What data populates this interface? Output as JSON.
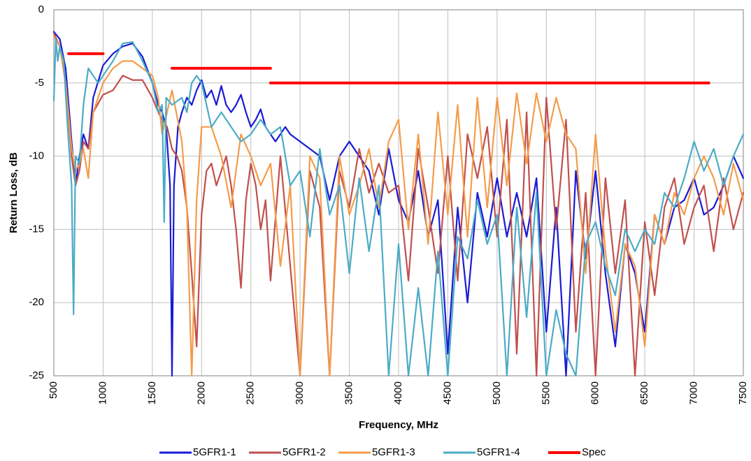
{
  "chart_data": {
    "type": "line",
    "title": "",
    "xlabel": "Frequency, MHz",
    "ylabel": "Return Loss, dB",
    "xlim": [
      500,
      7500
    ],
    "ylim": [
      -25,
      0
    ],
    "x_ticks": [
      500,
      1000,
      1500,
      2000,
      2500,
      3000,
      3500,
      4000,
      4500,
      5000,
      5500,
      6000,
      6500,
      7000,
      7500
    ],
    "y_ticks": [
      0,
      -5,
      -10,
      -15,
      -20,
      -25
    ],
    "grid": true,
    "legend_position": "bottom",
    "series": [
      {
        "name": "5GFR1-1",
        "color": "#1a1ad6",
        "x": [
          500,
          560,
          620,
          680,
          720,
          760,
          800,
          850,
          900,
          1000,
          1100,
          1200,
          1300,
          1400,
          1500,
          1560,
          1600,
          1640,
          1680,
          1700,
          1720,
          1760,
          1800,
          1850,
          1900,
          1950,
          2000,
          2050,
          2100,
          2150,
          2200,
          2250,
          2300,
          2350,
          2400,
          2450,
          2500,
          2550,
          2600,
          2650,
          2700,
          2750,
          2800,
          2850,
          2900,
          3000,
          3100,
          3200,
          3300,
          3400,
          3500,
          3600,
          3700,
          3800,
          3900,
          4000,
          4100,
          4200,
          4300,
          4400,
          4500,
          4600,
          4700,
          4800,
          4900,
          5000,
          5100,
          5200,
          5300,
          5400,
          5500,
          5600,
          5700,
          5800,
          5900,
          6000,
          6100,
          6200,
          6300,
          6400,
          6500,
          6600,
          6700,
          6800,
          6900,
          7000,
          7100,
          7200,
          7300,
          7400,
          7500
        ],
        "values": [
          -1.5,
          -2,
          -4,
          -9,
          -12,
          -10,
          -8.5,
          -9.5,
          -6,
          -3.8,
          -3,
          -2.5,
          -2.3,
          -3.2,
          -5,
          -6.5,
          -7,
          -8,
          -12,
          -25,
          -12,
          -8,
          -7,
          -6,
          -6.5,
          -5.5,
          -4.8,
          -6,
          -5.5,
          -6.5,
          -5.2,
          -6.5,
          -7,
          -6.5,
          -5.8,
          -7,
          -8,
          -7.5,
          -6.8,
          -8,
          -8.5,
          -9,
          -8.5,
          -8,
          -8.5,
          -9,
          -9.5,
          -10,
          -13,
          -10,
          -9,
          -10,
          -11,
          -14,
          -9.5,
          -13,
          -14.5,
          -11,
          -15.5,
          -13,
          -23.5,
          -13.5,
          -20,
          -12.5,
          -15.5,
          -11.5,
          -15.5,
          -12.5,
          -15.5,
          -11.5,
          -22,
          -13.5,
          -25,
          -11,
          -17,
          -11,
          -18,
          -23,
          -16,
          -18,
          -22,
          -14,
          -16,
          -13.5,
          -13,
          -11.5,
          -14,
          -13.5,
          -12,
          -10,
          -11.5
        ]
      },
      {
        "name": "5GFR1-2",
        "color": "#c0504d",
        "x": [
          500,
          560,
          620,
          680,
          720,
          760,
          800,
          850,
          900,
          1000,
          1100,
          1200,
          1300,
          1400,
          1500,
          1560,
          1600,
          1650,
          1700,
          1750,
          1800,
          1850,
          1900,
          1950,
          2000,
          2050,
          2100,
          2150,
          2200,
          2250,
          2300,
          2350,
          2400,
          2450,
          2500,
          2550,
          2600,
          2650,
          2700,
          2800,
          2900,
          3000,
          3100,
          3200,
          3300,
          3400,
          3500,
          3600,
          3700,
          3800,
          3900,
          4000,
          4100,
          4200,
          4300,
          4400,
          4500,
          4600,
          4700,
          4800,
          4900,
          5000,
          5100,
          5200,
          5300,
          5400,
          5500,
          5600,
          5700,
          5800,
          5900,
          6000,
          6100,
          6200,
          6300,
          6400,
          6500,
          6600,
          6700,
          6800,
          6900,
          7000,
          7100,
          7200,
          7300,
          7400,
          7500
        ],
        "values": [
          -1.6,
          -2.5,
          -5,
          -10,
          -12,
          -11,
          -9,
          -9.5,
          -7,
          -5.8,
          -5.5,
          -4.5,
          -4.8,
          -4.8,
          -6,
          -7,
          -7.5,
          -8,
          -9.5,
          -10,
          -11,
          -13.5,
          -18,
          -23,
          -14,
          -11,
          -10.5,
          -12,
          -11,
          -10,
          -12,
          -15,
          -19,
          -13,
          -10.5,
          -12,
          -15,
          -13,
          -18.5,
          -10,
          -17.5,
          -25,
          -11,
          -13.5,
          -25,
          -11,
          -13.5,
          -9.5,
          -12.5,
          -10.5,
          -12.5,
          -12,
          -18.5,
          -9.5,
          -13.5,
          -18,
          -10,
          -18.5,
          -8.5,
          -11.5,
          -8,
          -15.5,
          -7.5,
          -23.5,
          -7,
          -25,
          -6,
          -15,
          -7.5,
          -22,
          -12.5,
          -25,
          -11.5,
          -18,
          -13,
          -25,
          -14.5,
          -19.5,
          -13.5,
          -11.5,
          -16,
          -13.5,
          -12,
          -16.5,
          -11.5,
          -15,
          -12.5
        ]
      },
      {
        "name": "5GFR1-3",
        "color": "#f59c4a",
        "x": [
          500,
          560,
          620,
          680,
          720,
          760,
          800,
          850,
          900,
          1000,
          1100,
          1200,
          1300,
          1400,
          1500,
          1560,
          1600,
          1700,
          1800,
          1850,
          1900,
          1950,
          2000,
          2100,
          2200,
          2300,
          2400,
          2500,
          2600,
          2700,
          2800,
          2900,
          3000,
          3100,
          3200,
          3300,
          3400,
          3500,
          3600,
          3700,
          3800,
          3900,
          4000,
          4100,
          4200,
          4300,
          4400,
          4500,
          4600,
          4700,
          4800,
          4900,
          5000,
          5100,
          5200,
          5300,
          5400,
          5500,
          5600,
          5700,
          5800,
          5900,
          6000,
          6100,
          6200,
          6300,
          6400,
          6500,
          6600,
          6700,
          6800,
          6900,
          7000,
          7100,
          7200,
          7300,
          7400,
          7500
        ],
        "values": [
          -1.8,
          -2.5,
          -5,
          -9.5,
          -11,
          -10.5,
          -9.5,
          -11.5,
          -7,
          -5,
          -4,
          -3.5,
          -3.5,
          -4,
          -4.5,
          -6,
          -8.5,
          -5.5,
          -9,
          -13.5,
          -25,
          -13,
          -8,
          -8,
          -10,
          -13.5,
          -8.5,
          -10,
          -12,
          -10.5,
          -17.5,
          -12,
          -25,
          -10,
          -11.5,
          -25,
          -10,
          -14,
          -12,
          -9.5,
          -13.5,
          -9,
          -7.5,
          -15,
          -8.5,
          -16,
          -7,
          -14,
          -6.5,
          -15.5,
          -6,
          -13.5,
          -6,
          -12,
          -5.7,
          -10.5,
          -5.7,
          -9,
          -6,
          -8.5,
          -9.5,
          -18,
          -8.5,
          -16.5,
          -22,
          -16,
          -17.5,
          -23,
          -14,
          -16,
          -12.5,
          -14,
          -11.5,
          -10,
          -11.5,
          -14,
          -10.5,
          -13
        ]
      },
      {
        "name": "5GFR1-4",
        "color": "#4bacc6",
        "x": [
          500,
          520,
          540,
          560,
          600,
          640,
          680,
          700,
          720,
          760,
          800,
          850,
          900,
          950,
          1000,
          1100,
          1200,
          1300,
          1400,
          1500,
          1560,
          1600,
          1620,
          1640,
          1700,
          1800,
          1850,
          1900,
          1950,
          2000,
          2100,
          2200,
          2300,
          2400,
          2500,
          2600,
          2700,
          2800,
          2900,
          3000,
          3100,
          3200,
          3300,
          3400,
          3500,
          3600,
          3700,
          3800,
          3900,
          4000,
          4100,
          4200,
          4300,
          4400,
          4500,
          4600,
          4700,
          4800,
          4900,
          5000,
          5100,
          5200,
          5300,
          5400,
          5500,
          5600,
          5700,
          5800,
          5900,
          6000,
          6100,
          6200,
          6300,
          6400,
          6500,
          6600,
          6700,
          6800,
          6900,
          7000,
          7100,
          7200,
          7300,
          7400,
          7500
        ],
        "values": [
          -6.2,
          -2,
          -3.5,
          -2.5,
          -3.5,
          -8,
          -12,
          -20.8,
          -10,
          -10.5,
          -6.5,
          -4,
          -4.5,
          -5,
          -4.5,
          -3.5,
          -2.3,
          -2.2,
          -3.5,
          -5,
          -7,
          -6.5,
          -14.5,
          -6,
          -6.5,
          -6,
          -7,
          -5,
          -4.5,
          -5,
          -8,
          -7,
          -8,
          -9,
          -8.5,
          -7.5,
          -8.5,
          -8,
          -12,
          -11,
          -15.5,
          -9.5,
          -14,
          -12,
          -18,
          -11.5,
          -16.5,
          -12,
          -25,
          -16,
          -25,
          -19,
          -25,
          -16.5,
          -25,
          -15.5,
          -17,
          -13,
          -16,
          -14,
          -25,
          -13.5,
          -21,
          -12.5,
          -25,
          -20.5,
          -23.5,
          -25,
          -16,
          -14.5,
          -17.5,
          -19.5,
          -15,
          -16.5,
          -15,
          -16,
          -12.5,
          -13.5,
          -11.5,
          -9,
          -11,
          -9.5,
          -12,
          -10,
          -8.5
        ]
      },
      {
        "name": "Spec",
        "color": "#ff0000",
        "segments": [
          {
            "x": [
              650,
              1000
            ],
            "values": [
              -3,
              -3
            ]
          },
          {
            "x": [
              1700,
              2700
            ],
            "values": [
              -4,
              -4
            ]
          },
          {
            "x": [
              2700,
              7150
            ],
            "values": [
              -5,
              -5
            ]
          }
        ]
      }
    ]
  }
}
